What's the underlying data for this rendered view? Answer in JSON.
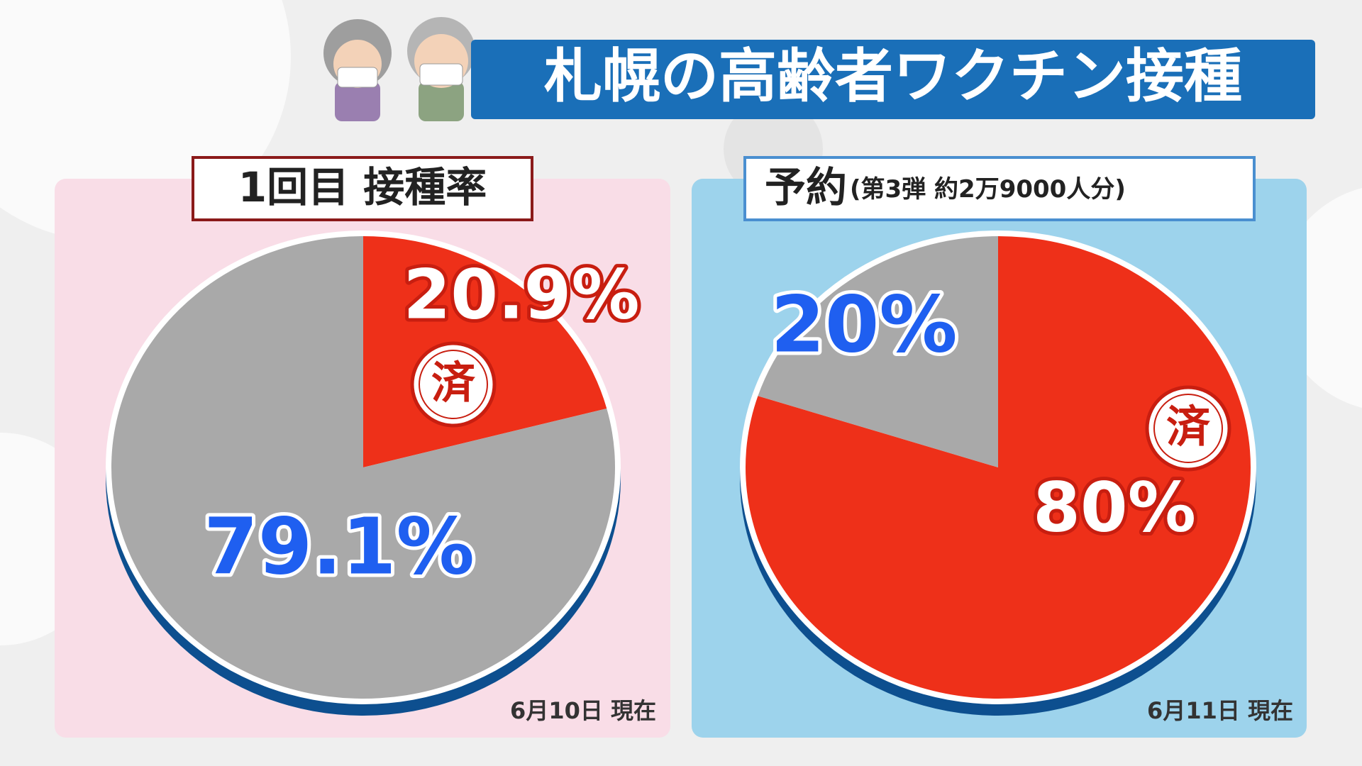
{
  "title": "札幌の高齢者ワクチン接種",
  "chart_data": [
    {
      "type": "pie",
      "title": "1回目 接種率",
      "values": [
        20.9,
        79.1
      ],
      "value_labels": [
        "20.9%",
        "79.1%"
      ],
      "colors": [
        "#ee3019",
        "#a9a9a9"
      ],
      "stamp": "済",
      "note": "6月10日 現在"
    },
    {
      "type": "pie",
      "title": "予約",
      "subtitle": "(第3弾 約2万9000人分)",
      "values": [
        80,
        20
      ],
      "value_labels": [
        "80%",
        "20%"
      ],
      "colors": [
        "#ee3019",
        "#a9a9a9"
      ],
      "stamp": "済",
      "note": "6月11日 現在"
    }
  ]
}
